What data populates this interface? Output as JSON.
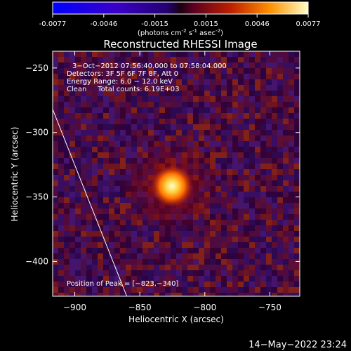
{
  "colorbar": {
    "ticks": [
      "-0.0077",
      "-0.0046",
      "-0.0015",
      "0.0015",
      "0.0046",
      "0.0077"
    ],
    "units": "(photons cm",
    "units_exp1": "-2",
    "units_mid": " s",
    "units_exp2": "-1",
    "units_mid2": " asec",
    "units_exp3": "-2",
    "units_end": ")"
  },
  "chart_data": {
    "type": "heatmap",
    "title": "Reconstructed RHESSI Image",
    "xlabel": "Heliocentric X (arcsec)",
    "ylabel": "Heliocentric Y (arcsec)",
    "xlim": [
      -917,
      -727
    ],
    "ylim": [
      -427,
      -237
    ],
    "x_ticks": [
      -900,
      -850,
      -800,
      -750
    ],
    "y_ticks": [
      -250,
      -300,
      -350,
      -400
    ],
    "x_tick_labels": [
      "−900",
      "−850",
      "−800",
      "−750"
    ],
    "y_tick_labels": [
      "−250",
      "−300",
      "−350",
      "−400"
    ],
    "value_range": [
      -0.0077,
      0.0077
    ],
    "peak": {
      "x": -823,
      "y": -340
    },
    "limb_line": [
      [
        -917,
        -282
      ],
      [
        -860,
        -427
      ]
    ],
    "annotations": {
      "time": "3−Oct−2012 07:56:40.000 to 07:58:04.000",
      "detectors": "Detectors: 3F 5F 6F 7F 8F, Att 0",
      "energy": "Energy Range: 6.0 − 12.0 keV",
      "clean": "Clean     Total counts: 6.19E+03",
      "peak_label": "Position of Peak = [−823,−340]"
    }
  },
  "footer": {
    "date": "14−May−2022 23:24"
  }
}
